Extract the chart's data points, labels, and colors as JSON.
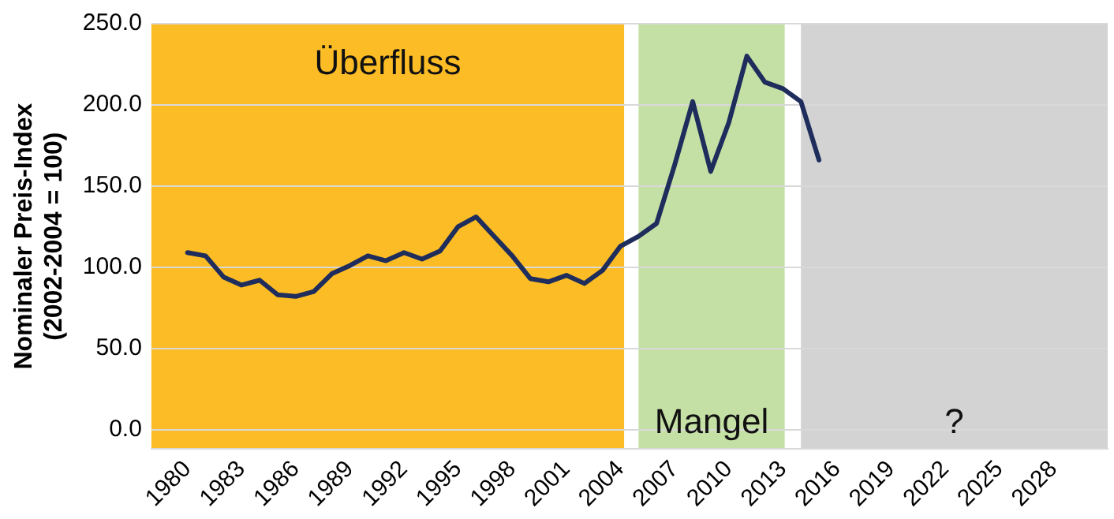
{
  "chart_data": {
    "type": "line",
    "ylabel": "Nominaler Preis-Index\n(2002-2004 = 100)",
    "x": [
      1980,
      1981,
      1982,
      1983,
      1984,
      1985,
      1986,
      1987,
      1988,
      1989,
      1990,
      1991,
      1992,
      1993,
      1994,
      1995,
      1996,
      1997,
      1998,
      1999,
      2000,
      2001,
      2002,
      2003,
      2004,
      2005,
      2006,
      2007,
      2008,
      2009,
      2010,
      2011,
      2012,
      2013,
      2014,
      2015
    ],
    "series": [
      {
        "color": "#1f2d5c",
        "values": [
          109,
          107,
          94,
          89,
          92,
          83,
          82,
          85,
          96,
          101,
          107,
          104,
          109,
          105,
          110,
          125,
          131,
          119,
          107,
          93,
          91,
          95,
          90,
          98,
          113,
          119,
          127,
          163,
          202,
          159,
          189,
          230,
          214,
          210,
          202,
          166
        ]
      }
    ],
    "xlim": [
      1978,
      2031
    ],
    "xticks": [
      1980,
      1983,
      1986,
      1989,
      1992,
      1995,
      1998,
      2001,
      2004,
      2007,
      2010,
      2013,
      2016,
      2019,
      2022,
      2025,
      2028
    ],
    "ylim": [
      -12,
      250
    ],
    "yticks": [
      {
        "value": 0,
        "label": "0.0"
      },
      {
        "value": 50,
        "label": "50.0"
      },
      {
        "value": 100,
        "label": "100.0"
      },
      {
        "value": 150,
        "label": "150.0"
      },
      {
        "value": 200,
        "label": "200.0"
      },
      {
        "value": 250,
        "label": "250.0"
      }
    ],
    "grid": "y",
    "marker": "none",
    "line_style": "solid",
    "bands": [
      {
        "axis": "x",
        "from": 1978,
        "to": 2004.2,
        "color": "#fbbc25",
        "label": "Überfluss"
      },
      {
        "axis": "x",
        "from": 2005,
        "to": 2013.1,
        "color": "#c5e0a5",
        "label": "Mangel"
      },
      {
        "axis": "x",
        "from": 2014,
        "to": 2031,
        "color": "#d3d3d3",
        "label": "?"
      }
    ]
  }
}
